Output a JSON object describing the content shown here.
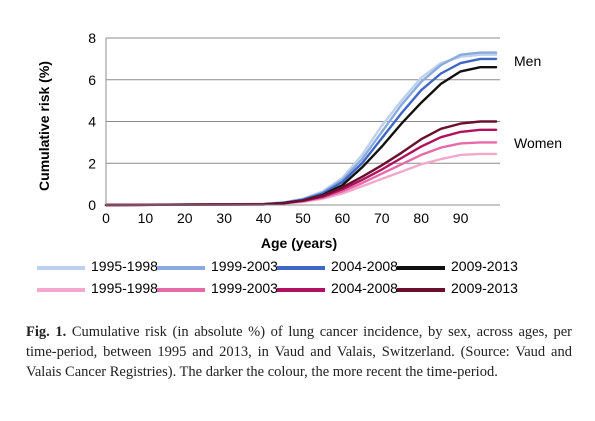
{
  "chart_data": {
    "type": "line",
    "xlabel": "Age (years)",
    "ylabel": "Cumulative risk (%)",
    "xlim": [
      0,
      100
    ],
    "ylim": [
      0,
      8
    ],
    "xticks": [
      "0",
      "10",
      "20",
      "30",
      "40",
      "50",
      "60",
      "70",
      "80",
      "90"
    ],
    "yticks": [
      "0",
      "2",
      "4",
      "6",
      "8"
    ],
    "grid": "horizontal",
    "group_labels": {
      "men": "Men",
      "women": "Women"
    },
    "series": [
      {
        "name": "1995-1998",
        "group": "men",
        "color": "#bdd1ec",
        "x": [
          0,
          40,
          45,
          50,
          55,
          60,
          65,
          70,
          75,
          80,
          85,
          90,
          95,
          99
        ],
        "y": [
          0,
          0.05,
          0.12,
          0.3,
          0.65,
          1.3,
          2.4,
          3.8,
          5.0,
          6.1,
          6.8,
          7.1,
          7.2,
          7.2
        ]
      },
      {
        "name": "1999-2003",
        "group": "men",
        "color": "#8aaae0",
        "x": [
          0,
          40,
          45,
          50,
          55,
          60,
          65,
          70,
          75,
          80,
          85,
          90,
          95,
          99
        ],
        "y": [
          0,
          0.05,
          0.12,
          0.28,
          0.6,
          1.2,
          2.2,
          3.5,
          4.8,
          5.9,
          6.7,
          7.2,
          7.3,
          7.3
        ]
      },
      {
        "name": "2004-2008",
        "group": "men",
        "color": "#3f68c4",
        "x": [
          0,
          40,
          45,
          50,
          55,
          60,
          65,
          70,
          75,
          80,
          85,
          90,
          95,
          99
        ],
        "y": [
          0,
          0.04,
          0.1,
          0.25,
          0.55,
          1.1,
          2.0,
          3.2,
          4.4,
          5.5,
          6.3,
          6.8,
          7.0,
          7.0
        ]
      },
      {
        "name": "2009-2013",
        "group": "men",
        "color": "#111111",
        "x": [
          0,
          40,
          45,
          50,
          55,
          60,
          65,
          70,
          75,
          80,
          85,
          90,
          95,
          99
        ],
        "y": [
          0,
          0.04,
          0.09,
          0.22,
          0.48,
          0.95,
          1.8,
          2.8,
          3.9,
          4.9,
          5.8,
          6.4,
          6.6,
          6.6
        ]
      },
      {
        "name": "1995-1998",
        "group": "women",
        "color": "#f4a8cc",
        "x": [
          0,
          40,
          45,
          50,
          55,
          60,
          65,
          70,
          75,
          80,
          85,
          90,
          95,
          99
        ],
        "y": [
          0,
          0.03,
          0.07,
          0.15,
          0.3,
          0.55,
          0.9,
          1.25,
          1.6,
          1.95,
          2.2,
          2.4,
          2.45,
          2.45
        ]
      },
      {
        "name": "1999-2003",
        "group": "women",
        "color": "#e86aa8",
        "x": [
          0,
          40,
          45,
          50,
          55,
          60,
          65,
          70,
          75,
          80,
          85,
          90,
          95,
          99
        ],
        "y": [
          0,
          0.03,
          0.08,
          0.18,
          0.35,
          0.65,
          1.05,
          1.5,
          1.95,
          2.4,
          2.75,
          2.95,
          3.0,
          3.0
        ]
      },
      {
        "name": "2004-2008",
        "group": "women",
        "color": "#b0105e",
        "x": [
          0,
          40,
          45,
          50,
          55,
          60,
          65,
          70,
          75,
          80,
          85,
          90,
          95,
          99
        ],
        "y": [
          0,
          0.03,
          0.08,
          0.2,
          0.4,
          0.75,
          1.2,
          1.7,
          2.25,
          2.8,
          3.25,
          3.5,
          3.6,
          3.6
        ]
      },
      {
        "name": "2009-2013",
        "group": "women",
        "color": "#6b0f2e",
        "x": [
          0,
          40,
          45,
          50,
          55,
          60,
          65,
          70,
          75,
          80,
          85,
          90,
          95,
          99
        ],
        "y": [
          0,
          0.03,
          0.09,
          0.22,
          0.45,
          0.85,
          1.35,
          1.9,
          2.5,
          3.15,
          3.65,
          3.9,
          4.0,
          4.0
        ]
      }
    ]
  },
  "caption": {
    "label": "Fig. 1.",
    "text": "Cumulative risk (in absolute %) of lung cancer incidence, by sex, across ages, per time-period, between 1995 and 2013, in Vaud and Valais, Switzerland. (Source: Vaud and Valais Cancer Registries). The darker the colour, the more recent the time-period."
  }
}
